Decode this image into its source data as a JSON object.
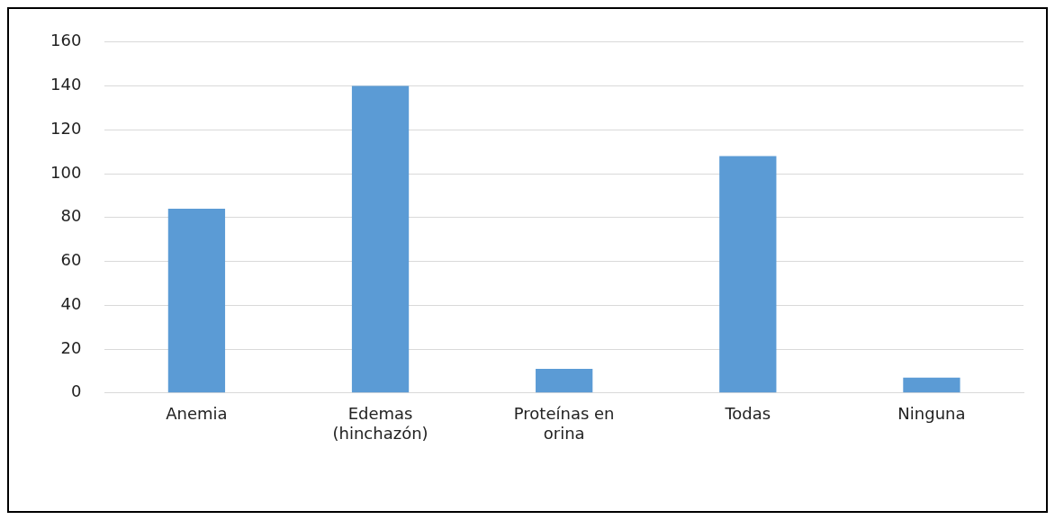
{
  "chart_data": {
    "type": "bar",
    "categories": [
      "Anemia",
      "Edemas (hinchazón)",
      "Proteínas en orina",
      "Todas",
      "Ninguna"
    ],
    "values": [
      84,
      140,
      11,
      108,
      7
    ],
    "color": "#5b9bd5",
    "ylim": [
      0,
      160
    ],
    "yticks": [
      0,
      20,
      40,
      60,
      80,
      100,
      120,
      140,
      160
    ],
    "grid": "y",
    "legend": false
  }
}
